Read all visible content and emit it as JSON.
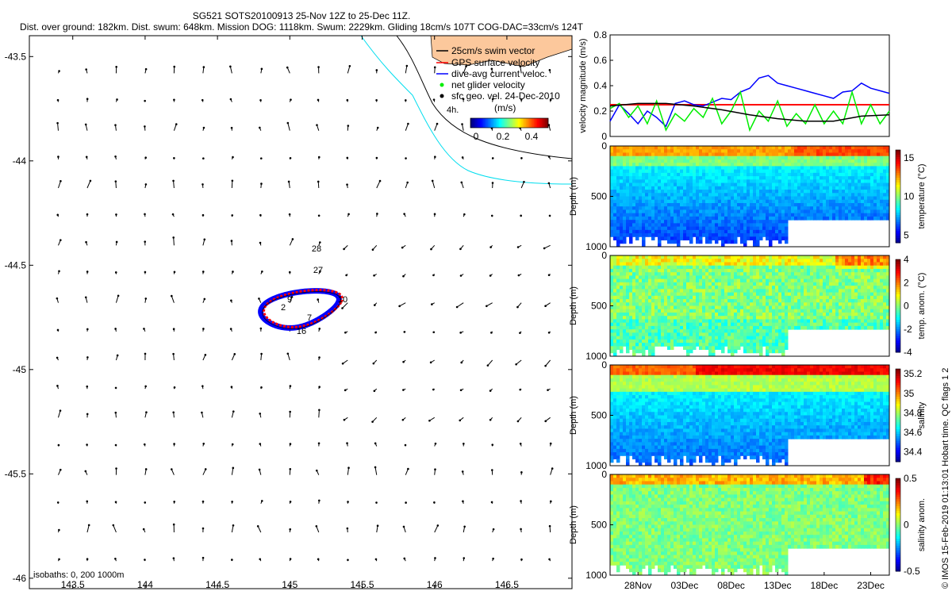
{
  "title_line1": "SG521 SOTS20100913 25-Nov 12Z to 25-Dec 11Z.",
  "title_line2": "Dist. over ground: 182km. Dist. swum: 648km. Mission DOG: 1118km. Swum: 2229km. Gliding 18cm/s 107T COG-DAC=33cm/s 124T",
  "credit": "© IMOS 15-Feb-2019 01:13:01 Hobart time. QC flags 1  2",
  "colors": {
    "gps": "#ff0000",
    "dive_avg": "#0000ff",
    "net": "#00ee00",
    "sfc": "#000000",
    "coast": "#00ddee",
    "land": "#fcc89c"
  },
  "chart_data": [
    {
      "type": "scatter",
      "name": "map",
      "xlim": [
        143.2,
        146.95
      ],
      "ylim": [
        -46.05,
        -43.4
      ],
      "xticks": [
        143.5,
        144,
        144.5,
        145,
        145.5,
        146,
        146.5
      ],
      "xtick_labels": [
        "143.5",
        "144",
        "144.5",
        "145",
        "145.5",
        "146",
        "146.5"
      ],
      "yticks": [
        -43.5,
        -44,
        -44.5,
        -45,
        -45.5,
        -46
      ],
      "ytick_labels": [
        "-43.5",
        "-44",
        "-44.5",
        "-45",
        "-45.5",
        "-46"
      ],
      "legend": {
        "items": [
          {
            "label": "25cm/s swim vector",
            "color": "#000000",
            "kind": "line"
          },
          {
            "label": "GPS surface velocity",
            "color": "#ff0000",
            "kind": "line"
          },
          {
            "label": "dive-avg current veloc.",
            "color": "#0000ff",
            "kind": "line"
          },
          {
            "label": "net glider velocity",
            "color": "#00ee00",
            "kind": "dot"
          },
          {
            "label": "sfc geo. vel. 24-Dec-2010",
            "color": "#000000",
            "kind": "dot"
          }
        ],
        "scale_label": "4h.",
        "unit_label": "(m/s)",
        "colorbar_ticks": [
          "0",
          "0.2",
          "0.4"
        ]
      },
      "track_annotations": [
        "28",
        "27",
        "9",
        "2",
        "16",
        "7",
        "10"
      ],
      "isobaths_label": "isobaths: 0,  200  1000m"
    },
    {
      "type": "line",
      "name": "velocity",
      "ylabel": "velocity magnitude (m/s)",
      "xlim": [
        0,
        30
      ],
      "ylim": [
        0,
        0.8
      ],
      "yticks": [
        0,
        0.2,
        0.4,
        0.6,
        0.8
      ],
      "ytick_labels": [
        "0",
        "0.2",
        "0.4",
        "0.6",
        "0.8"
      ],
      "series": [
        {
          "name": "GPS surface velocity",
          "color": "#ff0000",
          "x": [
            0,
            30
          ],
          "y": [
            0.25,
            0.25
          ]
        },
        {
          "name": "dive-avg current veloc.",
          "color": "#0000ff",
          "x": [
            0,
            1,
            2,
            3,
            4,
            5,
            6,
            7,
            8,
            9,
            10,
            11,
            12,
            13,
            14,
            15,
            16,
            17,
            18,
            19,
            20,
            21,
            22,
            23,
            24,
            25,
            26,
            27,
            28,
            29,
            30
          ],
          "y": [
            0.12,
            0.25,
            0.18,
            0.1,
            0.2,
            0.15,
            0.08,
            0.26,
            0.28,
            0.25,
            0.24,
            0.27,
            0.3,
            0.29,
            0.35,
            0.38,
            0.46,
            0.48,
            0.42,
            0.4,
            0.38,
            0.36,
            0.34,
            0.32,
            0.3,
            0.35,
            0.36,
            0.42,
            0.38,
            0.36,
            0.34
          ]
        },
        {
          "name": "net glider velocity",
          "color": "#00ee00",
          "x": [
            0,
            1,
            2,
            3,
            4,
            5,
            6,
            7,
            8,
            9,
            10,
            11,
            12,
            13,
            14,
            15,
            16,
            17,
            18,
            19,
            20,
            21,
            22,
            23,
            24,
            25,
            26,
            27,
            28,
            29,
            30
          ],
          "y": [
            0.22,
            0.26,
            0.15,
            0.24,
            0.1,
            0.28,
            0.05,
            0.18,
            0.12,
            0.22,
            0.15,
            0.3,
            0.1,
            0.2,
            0.35,
            0.05,
            0.2,
            0.12,
            0.28,
            0.08,
            0.18,
            0.1,
            0.25,
            0.1,
            0.2,
            0.1,
            0.35,
            0.1,
            0.25,
            0.1,
            0.2
          ]
        },
        {
          "name": "sfc geo. vel.",
          "color": "#000000",
          "x": [
            0,
            3,
            6,
            9,
            12,
            15,
            18,
            21,
            24,
            27,
            30
          ],
          "y": [
            0.24,
            0.26,
            0.26,
            0.24,
            0.21,
            0.17,
            0.14,
            0.12,
            0.12,
            0.16,
            0.17
          ]
        }
      ]
    },
    {
      "type": "heatmap",
      "name": "temperature",
      "ylabel": "Depth (m)",
      "ylim": [
        1000,
        0
      ],
      "yticks": [
        0,
        500,
        1000
      ],
      "ytick_labels": [
        "0",
        "500",
        "1000"
      ],
      "colorbar_label": "temperature (°C)",
      "colorbar_range": [
        4,
        16
      ],
      "colorbar_ticks": [
        5,
        10,
        15
      ],
      "colorbar_tick_labels": [
        "5",
        "10",
        "15"
      ]
    },
    {
      "type": "heatmap",
      "name": "temp-anomaly",
      "ylabel": "Depth (m)",
      "ylim": [
        1000,
        0
      ],
      "yticks": [
        0,
        500,
        1000
      ],
      "ytick_labels": [
        "0",
        "500",
        "1000"
      ],
      "colorbar_label": "temp. anom. (°C)",
      "colorbar_range": [
        -4,
        4
      ],
      "colorbar_ticks": [
        4,
        2,
        0,
        -2,
        -4
      ],
      "colorbar_tick_labels": [
        "4",
        "2",
        "0",
        "-2",
        "-4"
      ]
    },
    {
      "type": "heatmap",
      "name": "salinity",
      "ylabel": "Depth (m)",
      "ylim": [
        1000,
        0
      ],
      "yticks": [
        0,
        500,
        1000
      ],
      "ytick_labels": [
        "0",
        "500",
        "1000"
      ],
      "colorbar_label": "salinity",
      "colorbar_range": [
        34.3,
        35.25
      ],
      "colorbar_ticks": [
        35.2,
        35,
        34.8,
        34.6,
        34.4
      ],
      "colorbar_tick_labels": [
        "35.2",
        "35",
        "34.8",
        "34.6",
        "34.4"
      ]
    },
    {
      "type": "heatmap",
      "name": "salinity-anomaly",
      "ylabel": "Depth (m)",
      "ylim": [
        1000,
        0
      ],
      "yticks": [
        0,
        500,
        1000
      ],
      "ytick_labels": [
        "0",
        "500",
        "1000"
      ],
      "colorbar_label": "salinity anom.",
      "colorbar_range": [
        -0.5,
        0.5
      ],
      "colorbar_ticks": [
        0.5,
        0,
        -0.5
      ],
      "colorbar_tick_labels": [
        "0.5",
        "0",
        "-0.5"
      ],
      "xticks": [
        3,
        8,
        13,
        18,
        23,
        28
      ],
      "xtick_labels": [
        "28Nov",
        "03Dec",
        "08Dec",
        "13Dec",
        "18Dec",
        "23Dec"
      ]
    }
  ]
}
